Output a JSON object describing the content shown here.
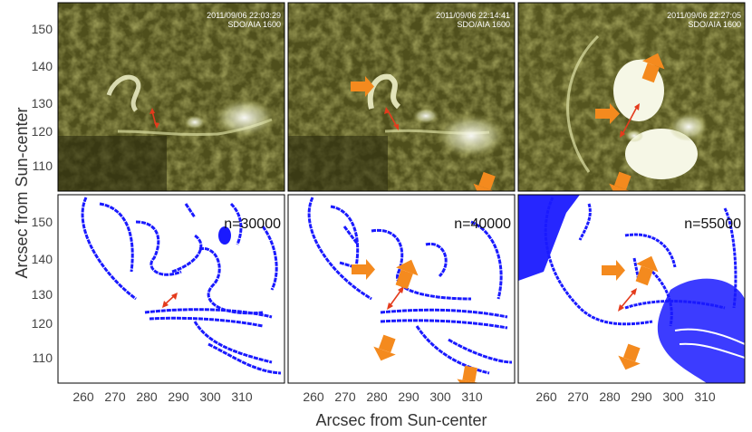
{
  "figure": {
    "y_axis_title": "Arcsec from Sun-center",
    "x_axis_title": "Arcsec from Sun-center",
    "y_ticks": [
      "150",
      "140",
      "130",
      "120",
      "110"
    ],
    "x_ticks": [
      "260",
      "270",
      "280",
      "290",
      "300",
      "310"
    ]
  },
  "top_panels": [
    {
      "timestamp": "2011/09/06 22:03:29",
      "instrument": "SDO/AIA 1600"
    },
    {
      "timestamp": "2011/09/06 22:14:41",
      "instrument": "SDO/AIA 1600"
    },
    {
      "timestamp": "2011/09/06 22:27:05",
      "instrument": "SDO/AIA 1600"
    }
  ],
  "bottom_panels": [
    {
      "label": "n=30000"
    },
    {
      "label": "n=40000"
    },
    {
      "label": "n=55000"
    }
  ],
  "colors": {
    "top_panel_base": "#4a4a1a",
    "bright_feature": "#f4f6d8",
    "contour_blue": "#1a1aff",
    "arrow_orange": "#f48a1e",
    "arrow_red": "#e43b1c"
  }
}
